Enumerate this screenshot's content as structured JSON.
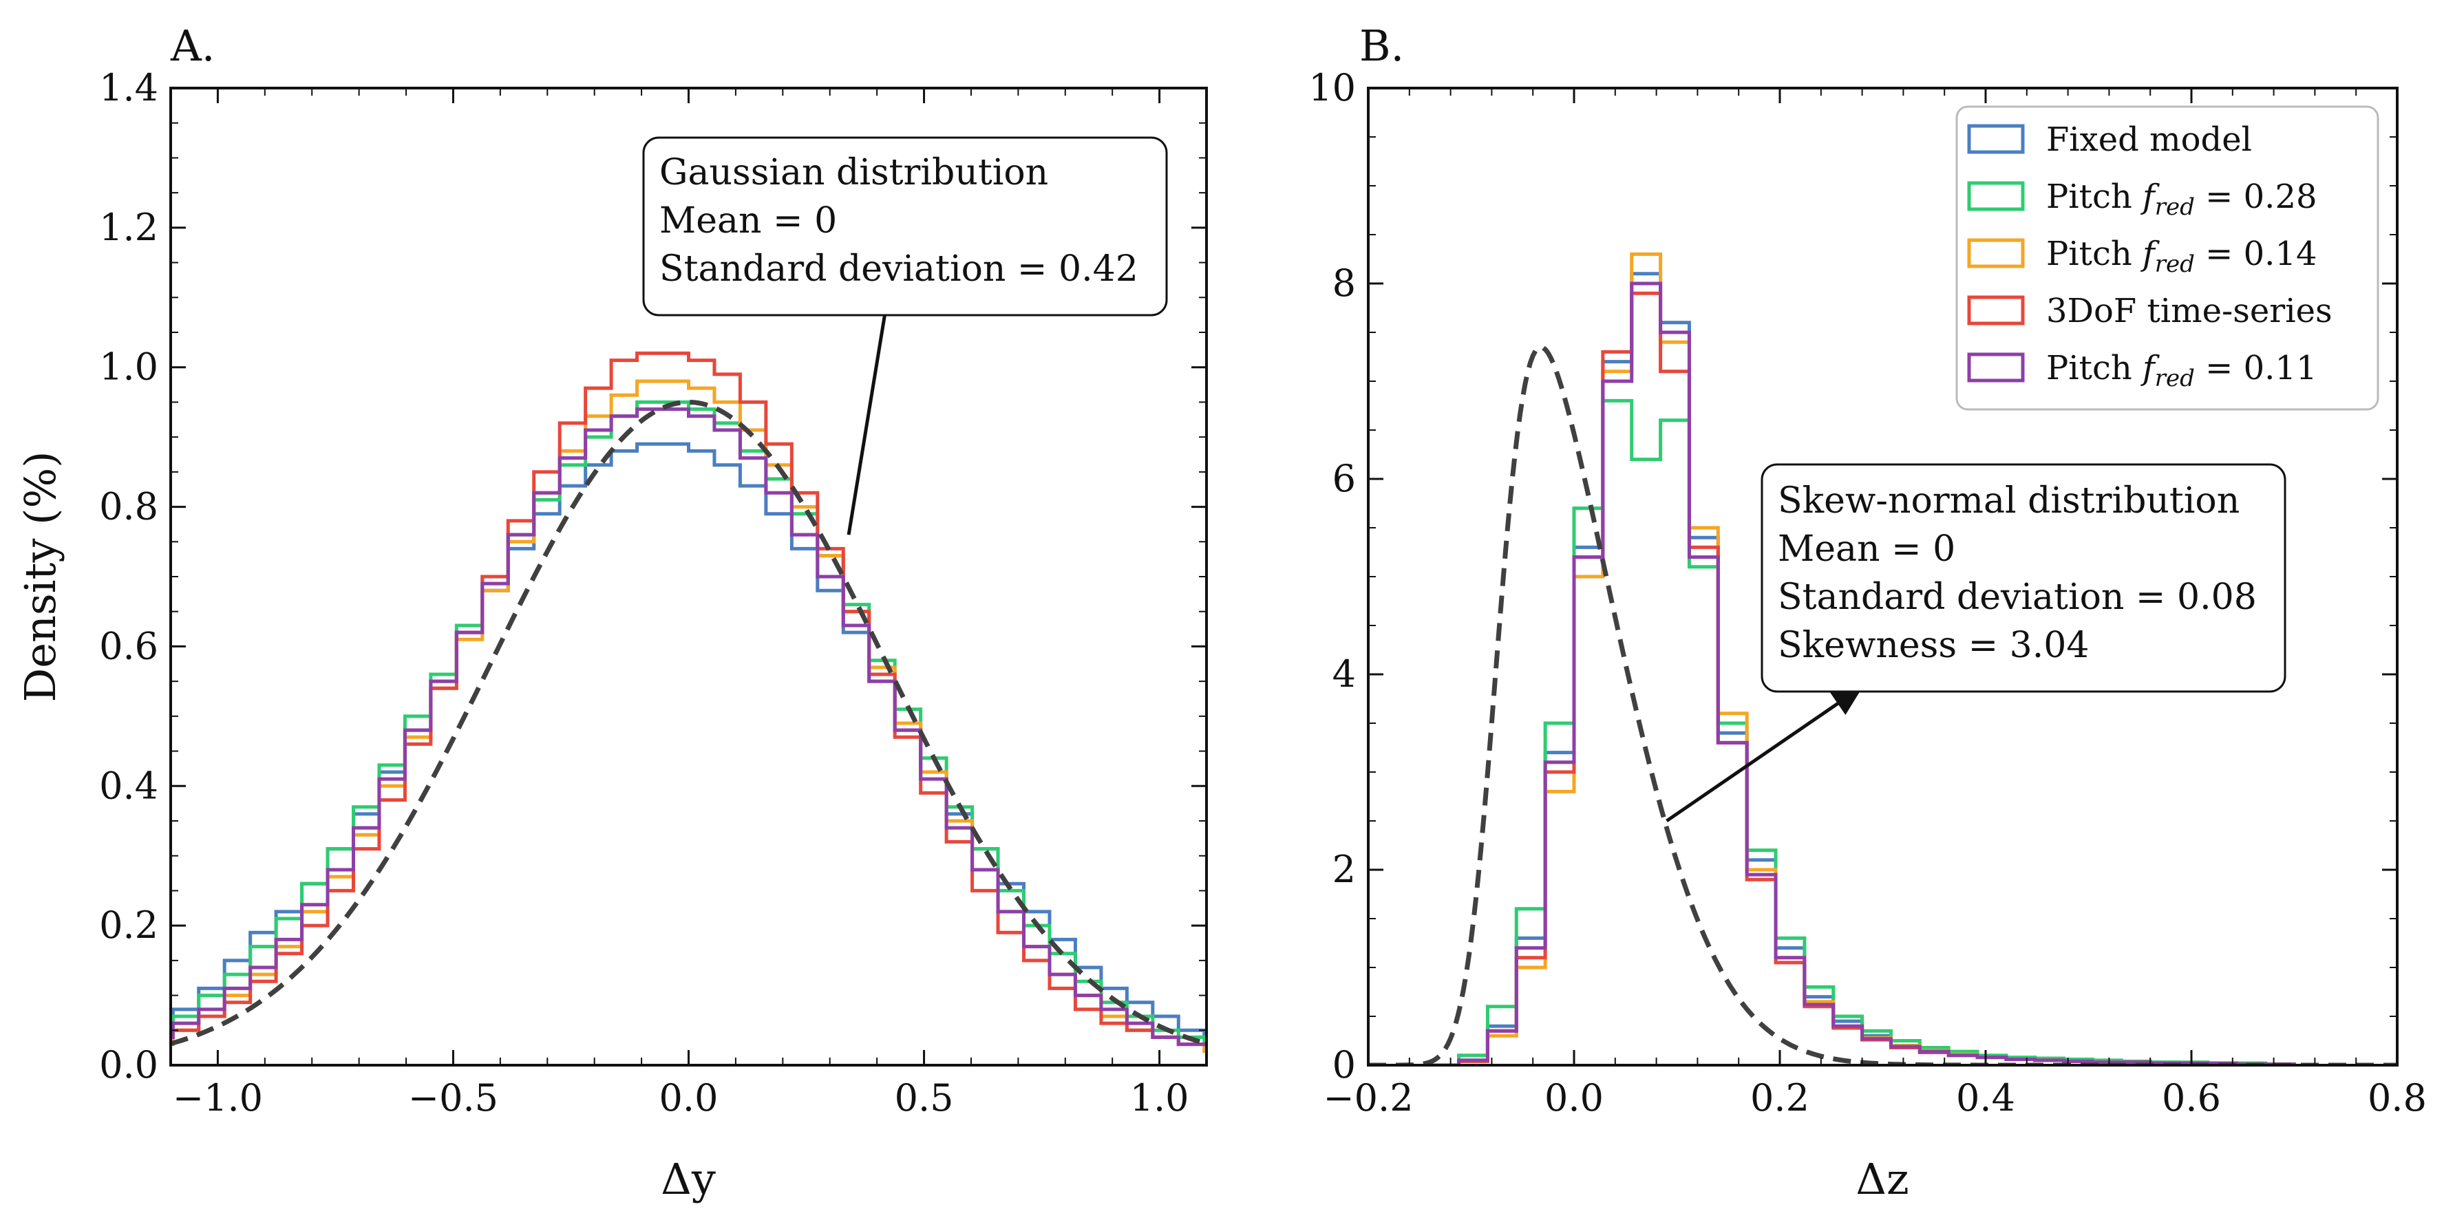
{
  "chart_data": [
    {
      "panel_label": "A.",
      "type": "histogram",
      "xlabel": "Δy",
      "ylabel": "Density (%)",
      "xlim": [
        -1.1,
        1.1
      ],
      "ylim": [
        0,
        1.4
      ],
      "xticks": [
        -1.0,
        -0.5,
        0.0,
        0.5,
        1.0
      ],
      "xtick_labels": [
        "−1.0",
        "−0.5",
        "0.0",
        "0.5",
        "1.0"
      ],
      "yticks": [
        0,
        0.2,
        0.4,
        0.6,
        0.8,
        1.0,
        1.2,
        1.4
      ],
      "ytick_labels": [
        "0.0",
        "0.2",
        "0.4",
        "0.6",
        "0.8",
        "1.0",
        "1.2",
        "1.4"
      ],
      "annotation": {
        "lines": [
          "Gaussian distribution",
          "Mean = 0",
          "Standard deviation = 0.42"
        ],
        "arrow_from": [
          0.34,
          0.76
        ],
        "arrow_to": [
          0.43,
          1.13
        ]
      },
      "fit_curve": {
        "type": "gaussian",
        "mean": 0,
        "std": 0.42,
        "peak": 0.95,
        "style": "dashed",
        "color": "#404040"
      },
      "series": [
        {
          "name": "Fixed model",
          "color": "#4a7fc1",
          "values": [
            0.05,
            0.08,
            0.11,
            0.15,
            0.19,
            0.22,
            0.26,
            0.31,
            0.36,
            0.42,
            0.48,
            0.55,
            0.62,
            0.68,
            0.74,
            0.79,
            0.83,
            0.86,
            0.88,
            0.89,
            0.89,
            0.88,
            0.86,
            0.83,
            0.79,
            0.74,
            0.68,
            0.62,
            0.55,
            0.48,
            0.42,
            0.36,
            0.31,
            0.26,
            0.22,
            0.18,
            0.14,
            0.11,
            0.09,
            0.07,
            0.05,
            0.04
          ]
        },
        {
          "name": "Pitch f_red = 0.28",
          "color": "#2ecc71",
          "values": [
            0.05,
            0.07,
            0.1,
            0.13,
            0.17,
            0.21,
            0.26,
            0.31,
            0.37,
            0.43,
            0.5,
            0.56,
            0.63,
            0.7,
            0.76,
            0.81,
            0.86,
            0.9,
            0.93,
            0.95,
            0.95,
            0.94,
            0.92,
            0.88,
            0.84,
            0.79,
            0.73,
            0.66,
            0.58,
            0.51,
            0.44,
            0.37,
            0.31,
            0.25,
            0.2,
            0.16,
            0.12,
            0.09,
            0.07,
            0.05,
            0.04,
            0.03
          ]
        },
        {
          "name": "Pitch f_red = 0.14",
          "color": "#f5a623",
          "values": [
            0.03,
            0.05,
            0.07,
            0.1,
            0.13,
            0.17,
            0.22,
            0.27,
            0.33,
            0.4,
            0.47,
            0.54,
            0.61,
            0.68,
            0.75,
            0.82,
            0.88,
            0.93,
            0.96,
            0.98,
            0.98,
            0.97,
            0.95,
            0.91,
            0.86,
            0.8,
            0.73,
            0.65,
            0.57,
            0.49,
            0.42,
            0.35,
            0.28,
            0.22,
            0.17,
            0.13,
            0.1,
            0.07,
            0.05,
            0.04,
            0.03,
            0.02
          ]
        },
        {
          "name": "3DoF time-series",
          "color": "#e8473b",
          "values": [
            0.04,
            0.05,
            0.07,
            0.09,
            0.12,
            0.16,
            0.2,
            0.25,
            0.31,
            0.38,
            0.46,
            0.54,
            0.62,
            0.7,
            0.78,
            0.85,
            0.92,
            0.97,
            1.01,
            1.02,
            1.02,
            1.01,
            0.99,
            0.95,
            0.89,
            0.82,
            0.74,
            0.65,
            0.56,
            0.47,
            0.39,
            0.32,
            0.25,
            0.19,
            0.15,
            0.11,
            0.08,
            0.06,
            0.05,
            0.04,
            0.03,
            0.03
          ]
        },
        {
          "name": "Pitch f_red = 0.11",
          "color": "#8e3fa8",
          "values": [
            0.04,
            0.06,
            0.08,
            0.11,
            0.14,
            0.18,
            0.23,
            0.28,
            0.34,
            0.41,
            0.48,
            0.55,
            0.62,
            0.69,
            0.76,
            0.82,
            0.87,
            0.91,
            0.93,
            0.94,
            0.94,
            0.93,
            0.91,
            0.87,
            0.82,
            0.76,
            0.7,
            0.63,
            0.55,
            0.48,
            0.41,
            0.34,
            0.28,
            0.22,
            0.17,
            0.13,
            0.1,
            0.08,
            0.06,
            0.04,
            0.03,
            0.03
          ]
        }
      ]
    },
    {
      "panel_label": "B.",
      "type": "histogram",
      "xlabel": "Δz",
      "ylabel": "",
      "xlim": [
        -0.2,
        0.8
      ],
      "ylim": [
        0,
        10
      ],
      "xticks": [
        -0.2,
        0.0,
        0.2,
        0.4,
        0.6,
        0.8
      ],
      "xtick_labels": [
        "−0.2",
        "0.0",
        "0.2",
        "0.4",
        "0.6",
        "0.8"
      ],
      "yticks": [
        0,
        2,
        4,
        6,
        8,
        10
      ],
      "ytick_labels": [
        "0",
        "2",
        "4",
        "6",
        "8",
        "10"
      ],
      "legend_position": "top-right",
      "annotation": {
        "lines": [
          "Skew-normal distribution",
          "Mean = 0",
          "Standard deviation = 0.08",
          "Skewness = 3.04"
        ],
        "arrow_from": [
          0.09,
          2.5
        ],
        "arrow_to": [
          0.27,
          3.8
        ]
      },
      "fit_curve": {
        "type": "skew-normal",
        "mean": 0,
        "std": 0.08,
        "skewness": 3.04,
        "peak": 7.35,
        "style": "dashed",
        "color": "#404040"
      },
      "series": [
        {
          "name": "Fixed model",
          "color": "#4a7fc1",
          "values": [
            0.0,
            0.05,
            0.4,
            1.3,
            3.2,
            5.3,
            7.2,
            8.1,
            7.6,
            5.4,
            3.4,
            2.1,
            1.2,
            0.7,
            0.45,
            0.3,
            0.2,
            0.15,
            0.12,
            0.09,
            0.07,
            0.06,
            0.05,
            0.04,
            0.03,
            0.03,
            0.02,
            0.02,
            0.02,
            0.01
          ]
        },
        {
          "name": "Pitch f_red = 0.28",
          "color": "#2ecc71",
          "values": [
            0.0,
            0.1,
            0.6,
            1.6,
            3.5,
            5.7,
            6.8,
            6.2,
            6.6,
            5.1,
            3.5,
            2.2,
            1.3,
            0.8,
            0.5,
            0.35,
            0.25,
            0.18,
            0.14,
            0.1,
            0.08,
            0.07,
            0.06,
            0.05,
            0.04,
            0.03,
            0.03,
            0.02,
            0.02,
            0.01
          ]
        },
        {
          "name": "Pitch f_red = 0.14",
          "color": "#f5a623",
          "values": [
            0.0,
            0.04,
            0.3,
            1.0,
            2.8,
            5.0,
            7.1,
            8.3,
            7.4,
            5.5,
            3.6,
            2.0,
            1.1,
            0.65,
            0.4,
            0.28,
            0.2,
            0.15,
            0.11,
            0.08,
            0.06,
            0.05,
            0.04,
            0.03,
            0.03,
            0.02,
            0.02,
            0.02,
            0.01,
            0.01
          ]
        },
        {
          "name": "3DoF time-series",
          "color": "#e8473b",
          "values": [
            0.0,
            0.04,
            0.35,
            1.1,
            3.0,
            5.2,
            7.3,
            7.9,
            7.1,
            5.3,
            3.3,
            1.9,
            1.05,
            0.6,
            0.38,
            0.26,
            0.18,
            0.13,
            0.1,
            0.08,
            0.06,
            0.05,
            0.04,
            0.03,
            0.03,
            0.02,
            0.02,
            0.02,
            0.01,
            0.01
          ]
        },
        {
          "name": "Pitch f_red = 0.11",
          "color": "#8e3fa8",
          "values": [
            0.0,
            0.05,
            0.35,
            1.2,
            3.1,
            5.2,
            7.0,
            8.0,
            7.5,
            5.2,
            3.3,
            1.95,
            1.1,
            0.62,
            0.4,
            0.27,
            0.19,
            0.14,
            0.1,
            0.08,
            0.06,
            0.05,
            0.04,
            0.03,
            0.03,
            0.02,
            0.02,
            0.02,
            0.01,
            0.01
          ]
        }
      ]
    }
  ],
  "legend": [
    {
      "label": "Fixed model",
      "color": "#4a7fc1"
    },
    {
      "label": "Pitch",
      "sub": "red",
      "eq": " = 0.28",
      "color": "#2ecc71"
    },
    {
      "label": "Pitch",
      "sub": "red",
      "eq": " = 0.14",
      "color": "#f5a623"
    },
    {
      "label": "3DoF time-series",
      "color": "#e8473b"
    },
    {
      "label": "Pitch",
      "sub": "red",
      "eq": " = 0.11",
      "color": "#8e3fa8"
    }
  ]
}
